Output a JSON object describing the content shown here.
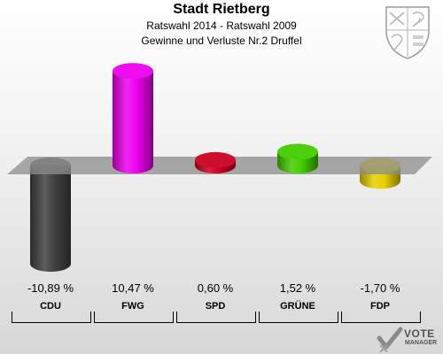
{
  "header": {
    "title": "Stadt Rietberg",
    "subtitle": "Ratswahl 2014 - Ratswahl 2009",
    "subtitle2": "Gewinne und Verluste Nr.2 Druffel"
  },
  "logo": {
    "line1": "VOTE",
    "line2": "MANAGER"
  },
  "chart_data": {
    "type": "bar",
    "title": "Stadt Rietberg",
    "subtitle": "Ratswahl 2014 - Ratswahl 2009 / Gewinne und Verluste Nr.2 Druffel",
    "xlabel": "",
    "ylabel": "",
    "ylim": [
      -12,
      12
    ],
    "categories": [
      "CDU",
      "FWG",
      "SPD",
      "GRÜNE",
      "FDP"
    ],
    "values": [
      -10.89,
      10.47,
      0.6,
      1.52,
      -1.7
    ],
    "value_labels": [
      "-10,89 %",
      "10,47 %",
      "0,60 %",
      "1,52 %",
      "-1,70 %"
    ],
    "colors": [
      "#404040",
      "#ee00ee",
      "#cc0022",
      "#44cc00",
      "#e8d000"
    ],
    "grid": false,
    "legend": "none"
  }
}
